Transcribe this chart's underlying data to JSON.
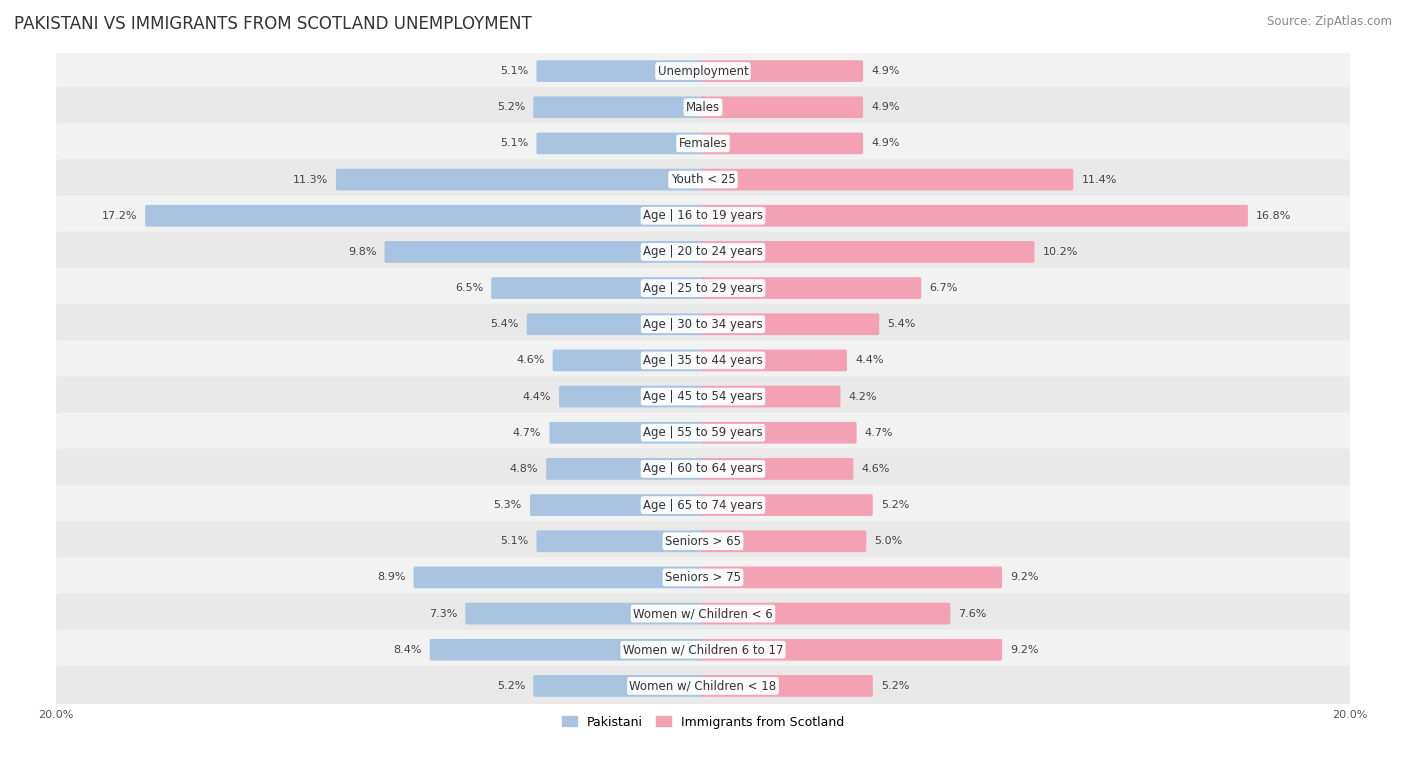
{
  "title": "PAKISTANI VS IMMIGRANTS FROM SCOTLAND UNEMPLOYMENT",
  "source": "Source: ZipAtlas.com",
  "categories": [
    "Unemployment",
    "Males",
    "Females",
    "Youth < 25",
    "Age | 16 to 19 years",
    "Age | 20 to 24 years",
    "Age | 25 to 29 years",
    "Age | 30 to 34 years",
    "Age | 35 to 44 years",
    "Age | 45 to 54 years",
    "Age | 55 to 59 years",
    "Age | 60 to 64 years",
    "Age | 65 to 74 years",
    "Seniors > 65",
    "Seniors > 75",
    "Women w/ Children < 6",
    "Women w/ Children 6 to 17",
    "Women w/ Children < 18"
  ],
  "pakistani": [
    5.1,
    5.2,
    5.1,
    11.3,
    17.2,
    9.8,
    6.5,
    5.4,
    4.6,
    4.4,
    4.7,
    4.8,
    5.3,
    5.1,
    8.9,
    7.3,
    8.4,
    5.2
  ],
  "immigrants": [
    4.9,
    4.9,
    4.9,
    11.4,
    16.8,
    10.2,
    6.7,
    5.4,
    4.4,
    4.2,
    4.7,
    4.6,
    5.2,
    5.0,
    9.2,
    7.6,
    9.2,
    5.2
  ],
  "max_val": 20.0,
  "bar_color_pakistani": "#a8c4e0",
  "bar_color_immigrants": "#f4a0b5",
  "title_fontsize": 12,
  "label_fontsize": 8.5,
  "value_fontsize": 8.0,
  "legend_fontsize": 9,
  "source_fontsize": 8.5
}
